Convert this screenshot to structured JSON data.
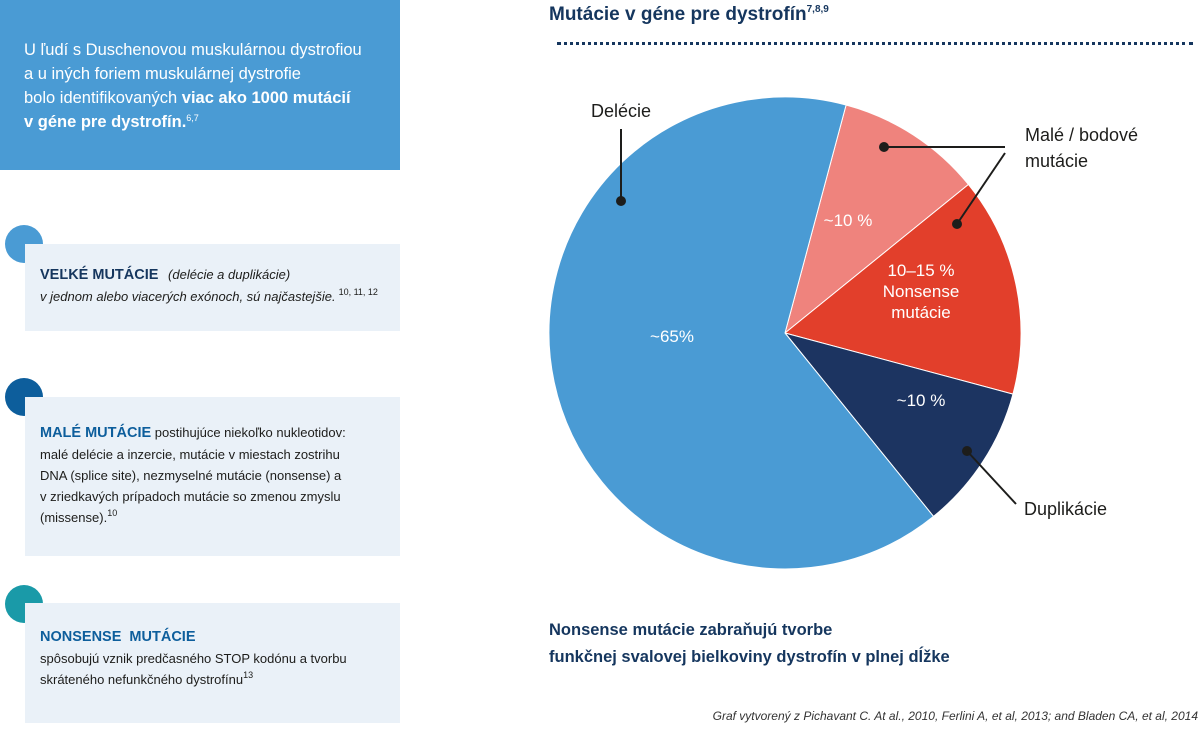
{
  "intro": {
    "line1": "U ľudí s Duschenovou muskulárnou dystrofiou",
    "line2": "a u iných foriem muskulárnej dystrofie",
    "line3": "bolo identifikovaných ",
    "bold1": "viac ako 1000 mutácií",
    "bold2": "v géne pre dystrofín.",
    "refs": "6,7"
  },
  "cards": {
    "large": {
      "title": "VEĽKÉ MUTÁCIE",
      "title_note": "(delécie a duplikácie)",
      "text": "v jednom alebo viacerých exónoch, sú najčastejšie.",
      "refs": "10, 11, 12",
      "color": "#4a9bd4"
    },
    "small": {
      "title": "MALÉ MUTÁCIE",
      "text1": " postihujúce niekoľko nukleotidov:",
      "text2": "malé delécie a inzercie, mutácie v miestach zostrihu",
      "text3": "DNA (splice site), nezmyselné mutácie (nonsense) a",
      "text4": "v zriedkavých prípadoch mutácie so zmenou zmyslu",
      "text5": "(missense).",
      "refs": "10",
      "color": "#0d5e9c"
    },
    "nonsense": {
      "title": "NONSENSE  MUTÁCIE",
      "text1": "spôsobujú vznik predčasného STOP kodónu a tvorbu",
      "text2": "skráteného nefunkčného dystrofínu",
      "refs": "13",
      "color": "#1a9aa8"
    }
  },
  "chart_title": "Mutácie v géne pre dystrofín",
  "chart_title_refs": "7,8,9",
  "chart_data": {
    "type": "pie",
    "title": "Mutácie v géne pre dystrofín",
    "slices": [
      {
        "name": "Delécie",
        "value": 65,
        "label": "~65%",
        "color": "#4a9bd4"
      },
      {
        "name": "Malé / bodové mutácie",
        "value": 10,
        "label": "~10 %",
        "color": "#ef837d"
      },
      {
        "name": "Nonsense mutácie",
        "value": 15,
        "label": "10–15 % Nonsense mutácie",
        "color": "#e23f2b"
      },
      {
        "name": "Duplikácie",
        "value": 10,
        "label": "~10 %",
        "color": "#1c3461"
      }
    ],
    "callouts": {
      "delecie": "Delécie",
      "male1": "Malé / bodové",
      "male2": "mutácie",
      "duplikacie": "Duplikácie"
    },
    "inner_labels": {
      "delecie": "~65%",
      "male": "~10 %",
      "nonsense1": "10–15 %",
      "nonsense2": "Nonsense",
      "nonsense3": "mutácie",
      "duplikacie": "~10 %"
    }
  },
  "note": {
    "line1": "Nonsense mutácie zabraňujú tvorbe",
    "line2": "funkčnej svalovej bielkoviny dystrofín v plnej dĺžke"
  },
  "source": "Graf vytvorený z Pichavant C. At al., 2010, Ferlini A, et al, 2013; and Bladen CA, et al, 2014"
}
